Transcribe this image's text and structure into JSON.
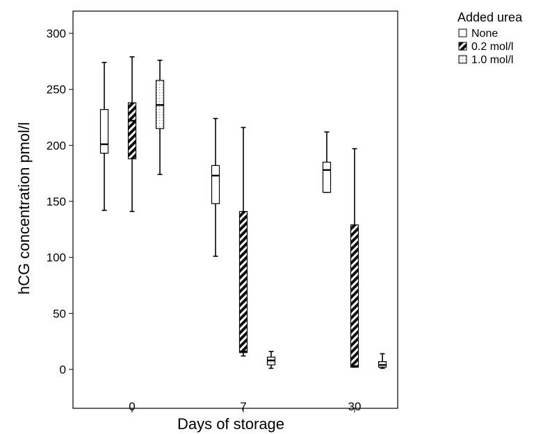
{
  "chart_data": {
    "type": "box",
    "xlabel": "Days of storage",
    "ylabel": "hCG concentration pmol/l",
    "ylim": [
      -16,
      316
    ],
    "yticks": [
      0,
      50,
      100,
      150,
      200,
      250,
      300
    ],
    "categories": [
      "0",
      "7",
      "30"
    ],
    "grid": false,
    "legend": {
      "title": "Added urea",
      "placement": "outside-top-right",
      "entries": [
        "None",
        "0.2 mol/l",
        "1.0 mol/l"
      ]
    },
    "series": [
      {
        "name": "None",
        "fill": "none",
        "boxes": [
          {
            "min": 142,
            "q1": 193,
            "median": 201,
            "q3": 232,
            "max": 274
          },
          {
            "min": 101,
            "q1": 148,
            "median": 173,
            "q3": 182,
            "max": 224
          },
          {
            "min": 158,
            "q1": 158,
            "median": 178,
            "q3": 185,
            "max": 212
          }
        ]
      },
      {
        "name": "0.2 mol/l",
        "fill": "hatch",
        "boxes": [
          {
            "min": 141,
            "q1": 188,
            "median": 222,
            "q3": 238,
            "max": 279
          },
          {
            "min": 12,
            "q1": 15,
            "median": 16,
            "q3": 141,
            "max": 216
          },
          {
            "min": 2,
            "q1": 2,
            "median": 3,
            "q3": 129,
            "max": 197
          }
        ]
      },
      {
        "name": "1.0 mol/l",
        "fill": "dotted",
        "boxes": [
          {
            "min": 174,
            "q1": 215,
            "median": 236,
            "q3": 258,
            "max": 276
          },
          {
            "min": 1,
            "q1": 4,
            "median": 8,
            "q3": 11,
            "max": 16
          },
          {
            "min": 1,
            "q1": 2,
            "median": 4,
            "q3": 7,
            "max": 14
          }
        ]
      }
    ]
  }
}
